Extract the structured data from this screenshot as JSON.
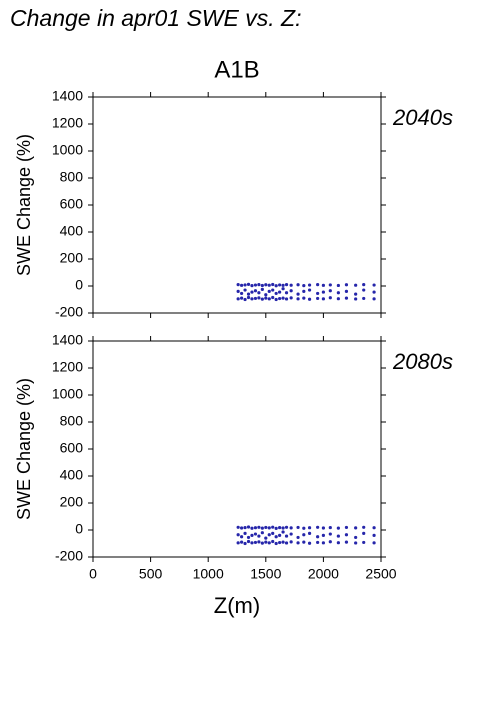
{
  "title": "Change in apr01 SWE vs. Z:",
  "chart_data": [
    {
      "type": "scatter",
      "title": "A1B",
      "annotation": "2040s",
      "ylabel": "SWE Change (%)",
      "xlim": [
        0,
        2500
      ],
      "ylim": [
        -200,
        1400
      ],
      "yticks": [
        -200,
        0,
        200,
        400,
        600,
        800,
        1000,
        1200,
        1400
      ],
      "series": [
        {
          "name": "2040s",
          "color": "#2626aa",
          "x": [
            1260,
            1290,
            1320,
            1350,
            1380,
            1410,
            1440,
            1470,
            1500,
            1530,
            1560,
            1590,
            1620,
            1650,
            1680,
            1720,
            1780,
            1830,
            1880,
            1950,
            2000,
            2060,
            2130,
            2200,
            2280,
            2350,
            2440,
            1260,
            1290,
            1320,
            1350,
            1380,
            1410,
            1440,
            1470,
            1500,
            1530,
            1560,
            1590,
            1620,
            1650,
            1680,
            1720,
            1780,
            1830,
            1880,
            1950,
            2000,
            2060,
            2130,
            2200,
            2280,
            2350,
            2440,
            1260,
            1290,
            1320,
            1350,
            1380,
            1410,
            1440,
            1470,
            1500,
            1530,
            1560,
            1590,
            1620,
            1650,
            1680,
            1720,
            1780,
            1830,
            1880,
            1950,
            2000,
            2060,
            2130,
            2200,
            2280,
            2350,
            2440
          ],
          "values": [
            10,
            5,
            8,
            12,
            3,
            7,
            10,
            4,
            9,
            6,
            11,
            2,
            8,
            5,
            10,
            6,
            9,
            3,
            7,
            10,
            5,
            8,
            4,
            9,
            6,
            10,
            7,
            -40,
            -55,
            -30,
            -60,
            -45,
            -35,
            -50,
            -25,
            -65,
            -40,
            -30,
            -55,
            -45,
            -20,
            -50,
            -35,
            -60,
            -40,
            -30,
            -55,
            -45,
            -35,
            -50,
            -40,
            -60,
            -30,
            -45,
            -95,
            -90,
            -100,
            -85,
            -95,
            -92,
            -88,
            -97,
            -90,
            -95,
            -85,
            -100,
            -93,
            -90,
            -96,
            -88,
            -95,
            -90,
            -98,
            -92,
            -95,
            -87,
            -94,
            -90,
            -96,
            -92,
            -95
          ]
        }
      ]
    },
    {
      "type": "scatter",
      "annotation": "2080s",
      "ylabel": "SWE Change (%)",
      "xlabel": "Z(m)",
      "xlim": [
        0,
        2500
      ],
      "ylim": [
        -200,
        1400
      ],
      "xticks": [
        0,
        500,
        1000,
        1500,
        2000,
        2500
      ],
      "yticks": [
        -200,
        0,
        200,
        400,
        600,
        800,
        1000,
        1200,
        1400
      ],
      "series": [
        {
          "name": "2080s",
          "color": "#2626aa",
          "x": [
            1260,
            1290,
            1320,
            1350,
            1380,
            1410,
            1440,
            1470,
            1500,
            1530,
            1560,
            1590,
            1620,
            1650,
            1680,
            1720,
            1780,
            1830,
            1880,
            1950,
            2000,
            2060,
            2130,
            2200,
            2280,
            2350,
            2440,
            1260,
            1290,
            1320,
            1350,
            1380,
            1410,
            1440,
            1470,
            1500,
            1530,
            1560,
            1590,
            1620,
            1650,
            1680,
            1720,
            1780,
            1830,
            1880,
            1950,
            2000,
            2060,
            2130,
            2200,
            2280,
            2350,
            2440,
            1260,
            1290,
            1320,
            1350,
            1380,
            1410,
            1440,
            1470,
            1500,
            1530,
            1560,
            1590,
            1620,
            1650,
            1680,
            1720,
            1780,
            1830,
            1880,
            1950,
            2000,
            2060,
            2130,
            2200,
            2280,
            2350,
            2440
          ],
          "values": [
            20,
            15,
            18,
            22,
            13,
            17,
            20,
            14,
            19,
            16,
            21,
            12,
            18,
            15,
            20,
            16,
            19,
            13,
            17,
            20,
            15,
            18,
            14,
            19,
            16,
            20,
            17,
            -35,
            -50,
            -25,
            -55,
            -40,
            -30,
            -45,
            -20,
            -60,
            -35,
            -25,
            -50,
            -40,
            -15,
            -45,
            -30,
            -55,
            -35,
            -25,
            -50,
            -40,
            -30,
            -45,
            -35,
            -55,
            -25,
            -40,
            -95,
            -90,
            -100,
            -85,
            -95,
            -92,
            -88,
            -97,
            -90,
            -95,
            -85,
            -100,
            -93,
            -90,
            -96,
            -88,
            -95,
            -90,
            -98,
            -92,
            -95,
            -87,
            -94,
            -90,
            -96,
            -92,
            -95
          ]
        }
      ]
    }
  ]
}
